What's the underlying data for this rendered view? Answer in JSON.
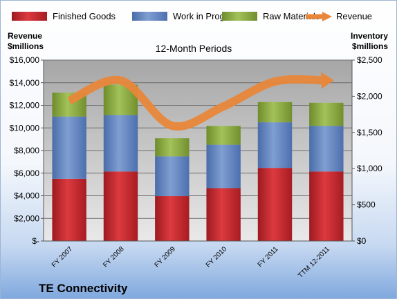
{
  "chart_data": {
    "type": "bar",
    "stacked": true,
    "company": "TE Connectivity",
    "subtitle": "12-Month Periods",
    "categories": [
      "FY 2007",
      "FY 2008",
      "FY 2009",
      "FY 2010",
      "FY 2011",
      "TTM 12-2011"
    ],
    "left_axis": {
      "label_line1": "Revenue",
      "label_line2": "$millions",
      "range": [
        0,
        16000
      ],
      "ticks": [
        {
          "value": 0,
          "label": "$-"
        },
        {
          "value": 2000,
          "label": "$2,000"
        },
        {
          "value": 4000,
          "label": "$4,000"
        },
        {
          "value": 6000,
          "label": "$6,000"
        },
        {
          "value": 8000,
          "label": "$8,000"
        },
        {
          "value": 10000,
          "label": "$10,000"
        },
        {
          "value": 12000,
          "label": "$12,000"
        },
        {
          "value": 14000,
          "label": "$14,000"
        },
        {
          "value": 16000,
          "label": "$16,000"
        }
      ]
    },
    "right_axis": {
      "label_line1": "Inventory",
      "label_line2": "$millions",
      "range": [
        0,
        2500
      ],
      "ticks": [
        {
          "value": 0,
          "label": "$0"
        },
        {
          "value": 500,
          "label": "$500"
        },
        {
          "value": 1000,
          "label": "$1,000"
        },
        {
          "value": 1500,
          "label": "$1,500"
        },
        {
          "value": 2000,
          "label": "$2,000"
        },
        {
          "value": 2500,
          "label": "$2,500"
        }
      ]
    },
    "series": [
      {
        "name": "Finished Goods",
        "axis": "right",
        "color": "#c0272d",
        "values": [
          860,
          960,
          620,
          730,
          1010,
          960
        ]
      },
      {
        "name": "Work in Progress",
        "axis": "right",
        "color": "#5b7fbf",
        "values": [
          860,
          780,
          550,
          600,
          630,
          630
        ]
      },
      {
        "name": "Raw Materials",
        "axis": "right",
        "color": "#8aaa3d",
        "values": [
          330,
          420,
          250,
          260,
          280,
          320
        ]
      }
    ],
    "line_series": {
      "name": "Revenue",
      "axis": "left",
      "color": "#e8873a",
      "values": [
        12400,
        14200,
        10200,
        11900,
        14100,
        14200
      ]
    },
    "legend_position": "top",
    "grid": true
  }
}
